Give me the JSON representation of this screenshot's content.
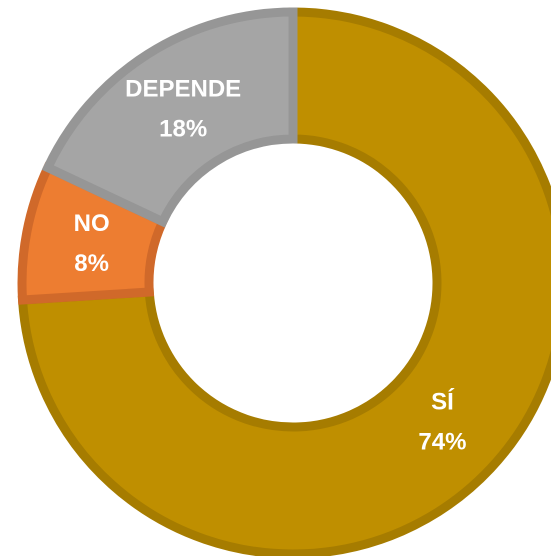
{
  "chart_data": {
    "type": "donut",
    "categories": [
      "SÍ",
      "NO",
      "DEPENDE"
    ],
    "values": [
      74,
      8,
      18
    ],
    "value_labels": [
      "74%",
      "8%",
      "18%"
    ],
    "colors": [
      "#bf8f00",
      "#ed7d31",
      "#a5a5a5"
    ],
    "border_colors": [
      "#a67c00",
      "#d0692a",
      "#969696"
    ]
  }
}
